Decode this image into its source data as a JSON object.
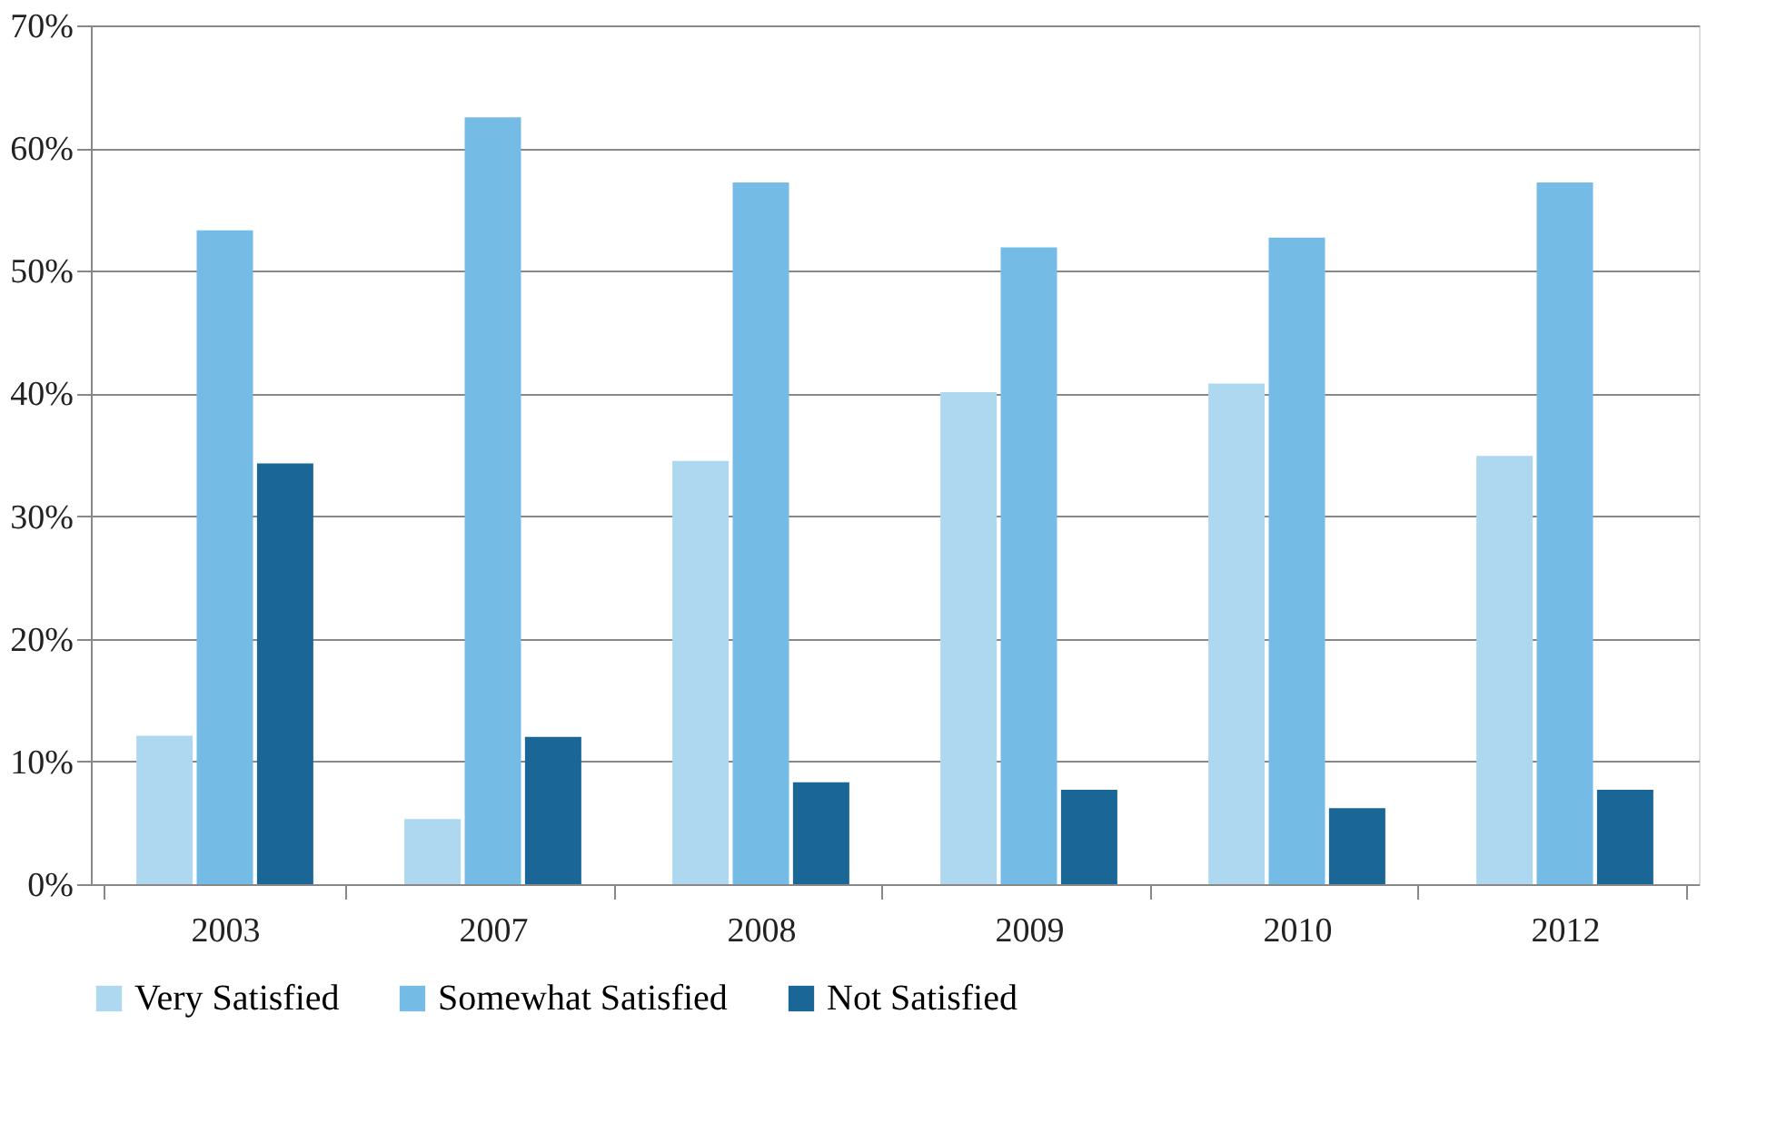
{
  "chart_data": {
    "type": "bar",
    "categories": [
      "2003",
      "2007",
      "2008",
      "2009",
      "2010",
      "2012"
    ],
    "series": [
      {
        "name": "Very Satisfied",
        "color": "#add8f0",
        "values": [
          12.1,
          5.3,
          34.5,
          40.1,
          40.8,
          34.9
        ]
      },
      {
        "name": "Somewhat Satisfied",
        "color": "#74bbe6",
        "values": [
          53.3,
          62.5,
          57.2,
          51.9,
          52.7,
          57.2
        ]
      },
      {
        "name": "Not Satisfied",
        "color": "#1a6696",
        "values": [
          34.3,
          12.0,
          8.3,
          7.7,
          6.2,
          7.7
        ]
      }
    ],
    "ylim": [
      0,
      70
    ],
    "yticks": [
      {
        "value": 0,
        "label": "0%"
      },
      {
        "value": 10,
        "label": "10%"
      },
      {
        "value": 20,
        "label": "20%"
      },
      {
        "value": 30,
        "label": "30%"
      },
      {
        "value": 40,
        "label": "40%"
      },
      {
        "value": 50,
        "label": "50%"
      },
      {
        "value": 60,
        "label": "60%"
      },
      {
        "value": 70,
        "label": "70%"
      }
    ],
    "grid": "y",
    "legend": "bottom"
  }
}
